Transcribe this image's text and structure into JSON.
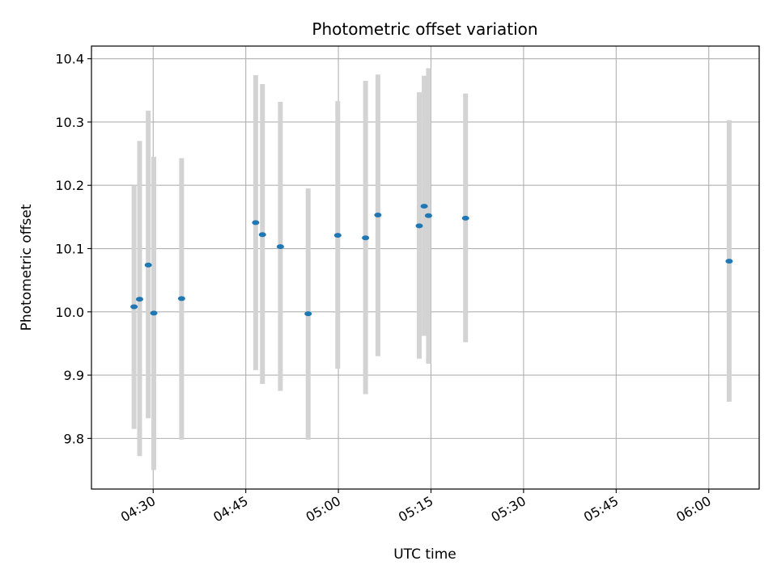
{
  "chart_data": {
    "type": "scatter",
    "title": "Photometric offset variation",
    "xlabel": "UTC time",
    "ylabel": "Photometric offset",
    "x_ticks": [
      "04:30",
      "04:45",
      "05:00",
      "05:15",
      "05:30",
      "05:45",
      "06:00"
    ],
    "y_ticks": [
      "9.8",
      "9.9",
      "10.0",
      "10.1",
      "10.2",
      "10.3",
      "10.4"
    ],
    "xlim": [
      "04:20:00",
      "06:08:10"
    ],
    "ylim": [
      9.72,
      10.42
    ],
    "grid": true,
    "series": [
      {
        "points": [
          {
            "x": "04:26:54",
            "y": 10.008,
            "ylow": 9.815,
            "yhigh": 10.2
          },
          {
            "x": "04:27:48",
            "y": 10.02,
            "ylow": 9.772,
            "yhigh": 10.27
          },
          {
            "x": "04:29:12",
            "y": 10.074,
            "ylow": 9.832,
            "yhigh": 10.318
          },
          {
            "x": "04:30:06",
            "y": 9.998,
            "ylow": 9.75,
            "yhigh": 10.245
          },
          {
            "x": "04:34:36",
            "y": 10.021,
            "ylow": 9.798,
            "yhigh": 10.243
          },
          {
            "x": "04:46:36",
            "y": 10.141,
            "ylow": 9.908,
            "yhigh": 10.374
          },
          {
            "x": "04:47:42",
            "y": 10.122,
            "ylow": 9.886,
            "yhigh": 10.36
          },
          {
            "x": "04:50:36",
            "y": 10.103,
            "ylow": 9.875,
            "yhigh": 10.332
          },
          {
            "x": "04:55:06",
            "y": 9.997,
            "ylow": 9.798,
            "yhigh": 10.195
          },
          {
            "x": "04:59:54",
            "y": 10.121,
            "ylow": 9.91,
            "yhigh": 10.333
          },
          {
            "x": "05:04:24",
            "y": 10.117,
            "ylow": 9.87,
            "yhigh": 10.365
          },
          {
            "x": "05:06:24",
            "y": 10.153,
            "ylow": 9.93,
            "yhigh": 10.375
          },
          {
            "x": "05:13:06",
            "y": 10.136,
            "ylow": 9.926,
            "yhigh": 10.347
          },
          {
            "x": "05:13:54",
            "y": 10.167,
            "ylow": 9.962,
            "yhigh": 10.373
          },
          {
            "x": "05:14:36",
            "y": 10.152,
            "ylow": 9.918,
            "yhigh": 10.385
          },
          {
            "x": "05:20:36",
            "y": 10.148,
            "ylow": 9.952,
            "yhigh": 10.345
          },
          {
            "x": "06:03:18",
            "y": 10.08,
            "ylow": 9.858,
            "yhigh": 10.303
          }
        ]
      }
    ],
    "colors": {
      "point": "#1f77b4",
      "errorbar": "#d3d3d3",
      "grid": "#b0b0b0",
      "axes": "#000000"
    }
  }
}
